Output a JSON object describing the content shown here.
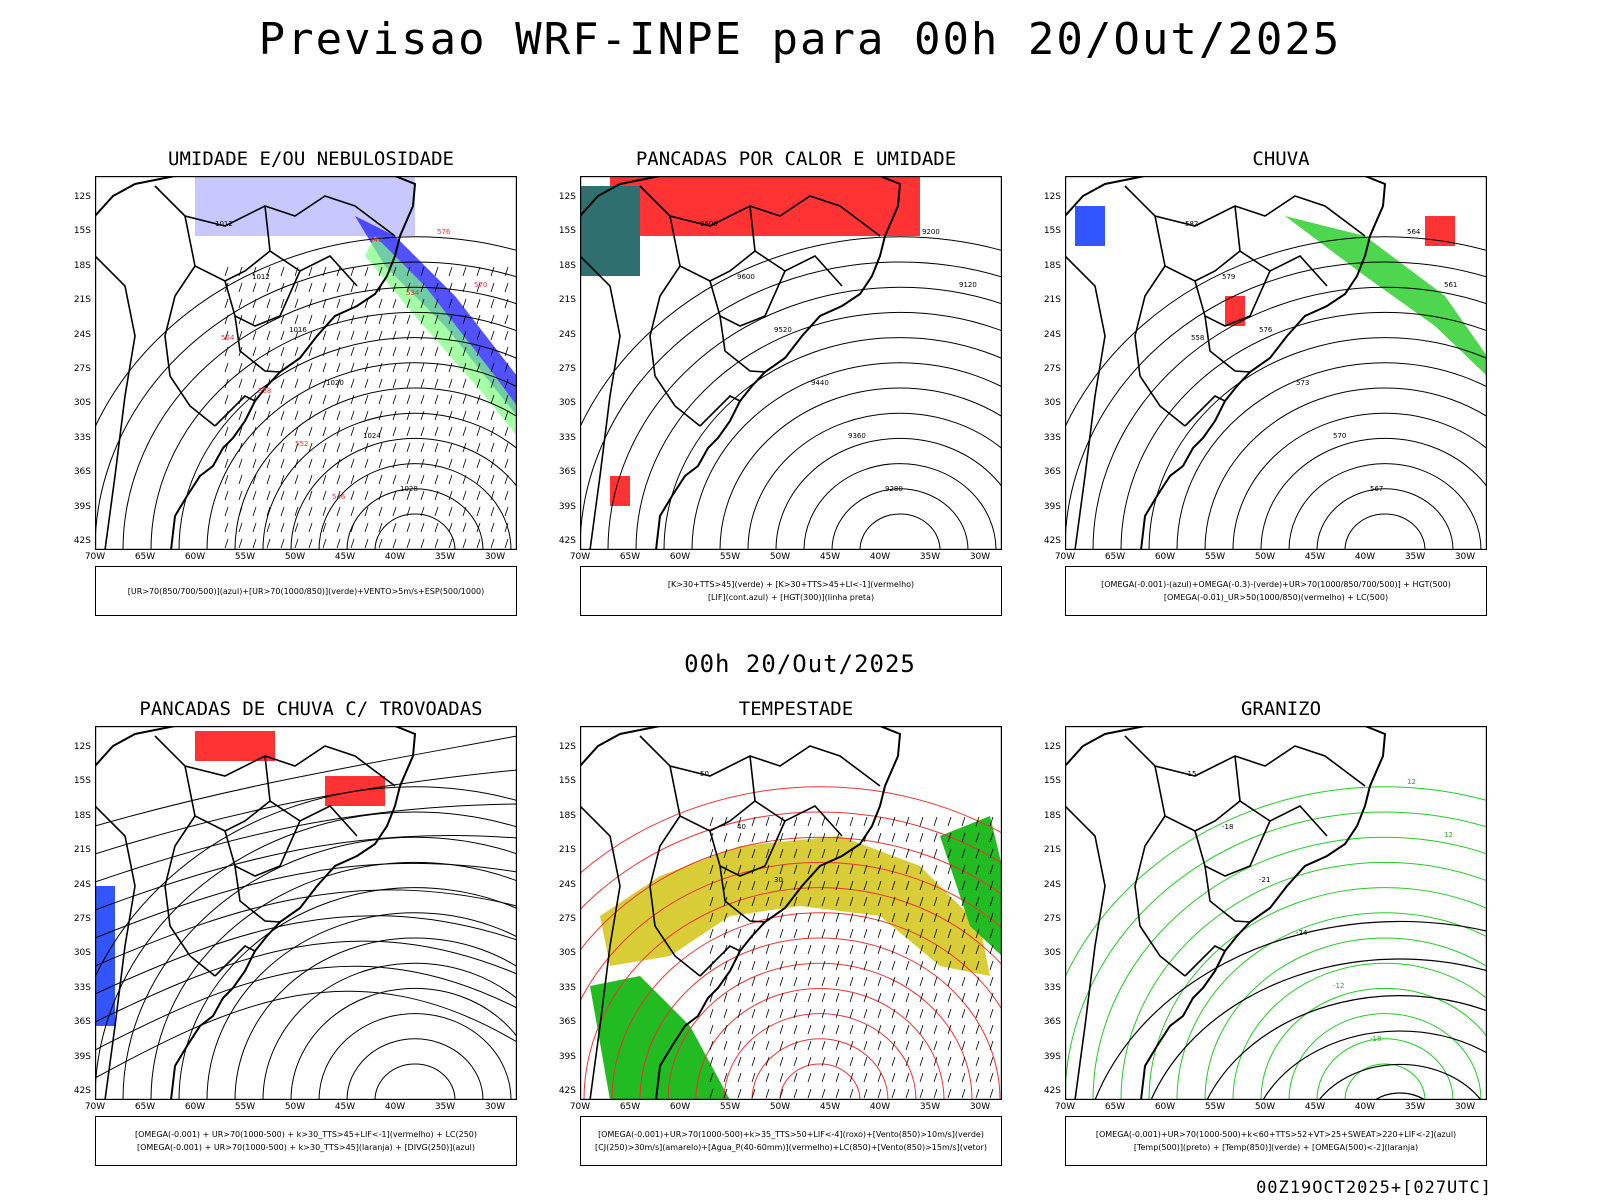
{
  "title": "Previsao WRF-INPE  para 00h 20/Out/2025",
  "subtitle": "00h 20/Out/2025",
  "footer": "00Z19OCT2025+[027UTC]",
  "axes": {
    "lat": [
      "12S",
      "15S",
      "18S",
      "21S",
      "24S",
      "27S",
      "30S",
      "33S",
      "36S",
      "39S",
      "42S"
    ],
    "lon": [
      "70W",
      "65W",
      "60W",
      "55W",
      "50W",
      "45W",
      "40W",
      "35W",
      "30W"
    ]
  },
  "panels": [
    {
      "id": "umidade",
      "title": "UMIDADE E/OU NEBULOSIDADE",
      "legend": [
        "[UR>70(850/700/500)](azul)+[UR>70(1000/850)](verde)+VENTO>5m/s+ESP(500/1000)"
      ],
      "labels": [
        "1012",
        "1012",
        "1016",
        "1020",
        "1024",
        "1028",
        "576",
        "570",
        "564",
        "558",
        "552",
        "546",
        "540",
        "534"
      ]
    },
    {
      "id": "pancadas-calor",
      "title": "PANCADAS POR CALOR E UMIDADE",
      "legend": [
        "[K>30+TTS>45](verde) + [K>30+TTS>45+LI<-1](vermelho)",
        "[LIF](cont.azul) + [HGT(300)](linha preta)"
      ],
      "labels": [
        "9600",
        "9600",
        "9520",
        "9440",
        "9360",
        "9280",
        "9200",
        "9120"
      ]
    },
    {
      "id": "chuva",
      "title": "CHUVA",
      "legend": [
        "[OMEGA(-0.001)-(azul)+OMEGA(-0.3)-(verde)+UR>70(1000/850/700/500)] + HGT(500)",
        "[OMEGA(-0.01)_UR>50(1000/850)(vermelho) + LC(500)"
      ],
      "labels": [
        "582",
        "579",
        "576",
        "573",
        "570",
        "567",
        "564",
        "561",
        "558"
      ]
    },
    {
      "id": "trovoadas",
      "title": "PANCADAS DE CHUVA C/ TROVOADAS",
      "legend": [
        "[OMEGA(-0.001) + UR>70(1000-500) + k>30_TTS>45+LIF<-1](vermelho) + LC(250)",
        "[OMEGA(-0.001) + UR>70(1000-500) + k>30_TTS>45](laranja) + [DIVG(250)](azul)"
      ],
      "labels": []
    },
    {
      "id": "tempestade",
      "title": "TEMPESTADE",
      "legend": [
        "[OMEGA(-0.001)+UR>70(1000-500)+k>35_TTS>50+LIF<-4](roxo)+[Vento(850)>10m/s](verde)",
        "[CJ(250)>30m/s](amarelo)+[Agua_P(40-60mm)](vermelho)+LC(850)+[Vento(850)>15m/s](vetor)"
      ],
      "labels": [
        "50",
        "40",
        "30"
      ]
    },
    {
      "id": "granizo",
      "title": "GRANIZO",
      "legend": [
        "[OMEGA(-0.001)+UR>70(1000-500)+k<60+TTS>52+VT>25+SWEAT>220+LIF<-2](azul)",
        "[Temp(500)](preto) + [Temp(850)](verde) + [OMEGA(500)<-2](laranja)"
      ],
      "labels": [
        "-15",
        "-18",
        "-21",
        "-24",
        "-12",
        "-18",
        "12",
        "12"
      ]
    }
  ]
}
